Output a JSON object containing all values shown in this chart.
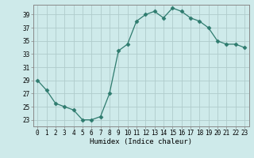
{
  "x": [
    0,
    1,
    2,
    3,
    4,
    5,
    6,
    7,
    8,
    9,
    10,
    11,
    12,
    13,
    14,
    15,
    16,
    17,
    18,
    19,
    20,
    21,
    22,
    23
  ],
  "y": [
    29,
    27.5,
    25.5,
    25,
    24.5,
    23,
    23,
    23.5,
    27,
    33.5,
    34.5,
    38,
    39,
    39.5,
    38.5,
    40,
    39.5,
    38.5,
    38,
    37,
    35,
    34.5,
    34.5,
    34
  ],
  "line_color": "#2e7b6e",
  "marker": "D",
  "marker_size": 2.5,
  "bg_color": "#ceeaea",
  "grid_color": "#b0cccc",
  "ylabel_ticks": [
    23,
    25,
    27,
    29,
    31,
    33,
    35,
    37,
    39
  ],
  "xlabel": "Humidex (Indice chaleur)",
  "xlim": [
    -0.5,
    23.5
  ],
  "ylim": [
    22,
    40.5
  ],
  "tick_fontsize": 5.5,
  "xlabel_fontsize": 6.5
}
